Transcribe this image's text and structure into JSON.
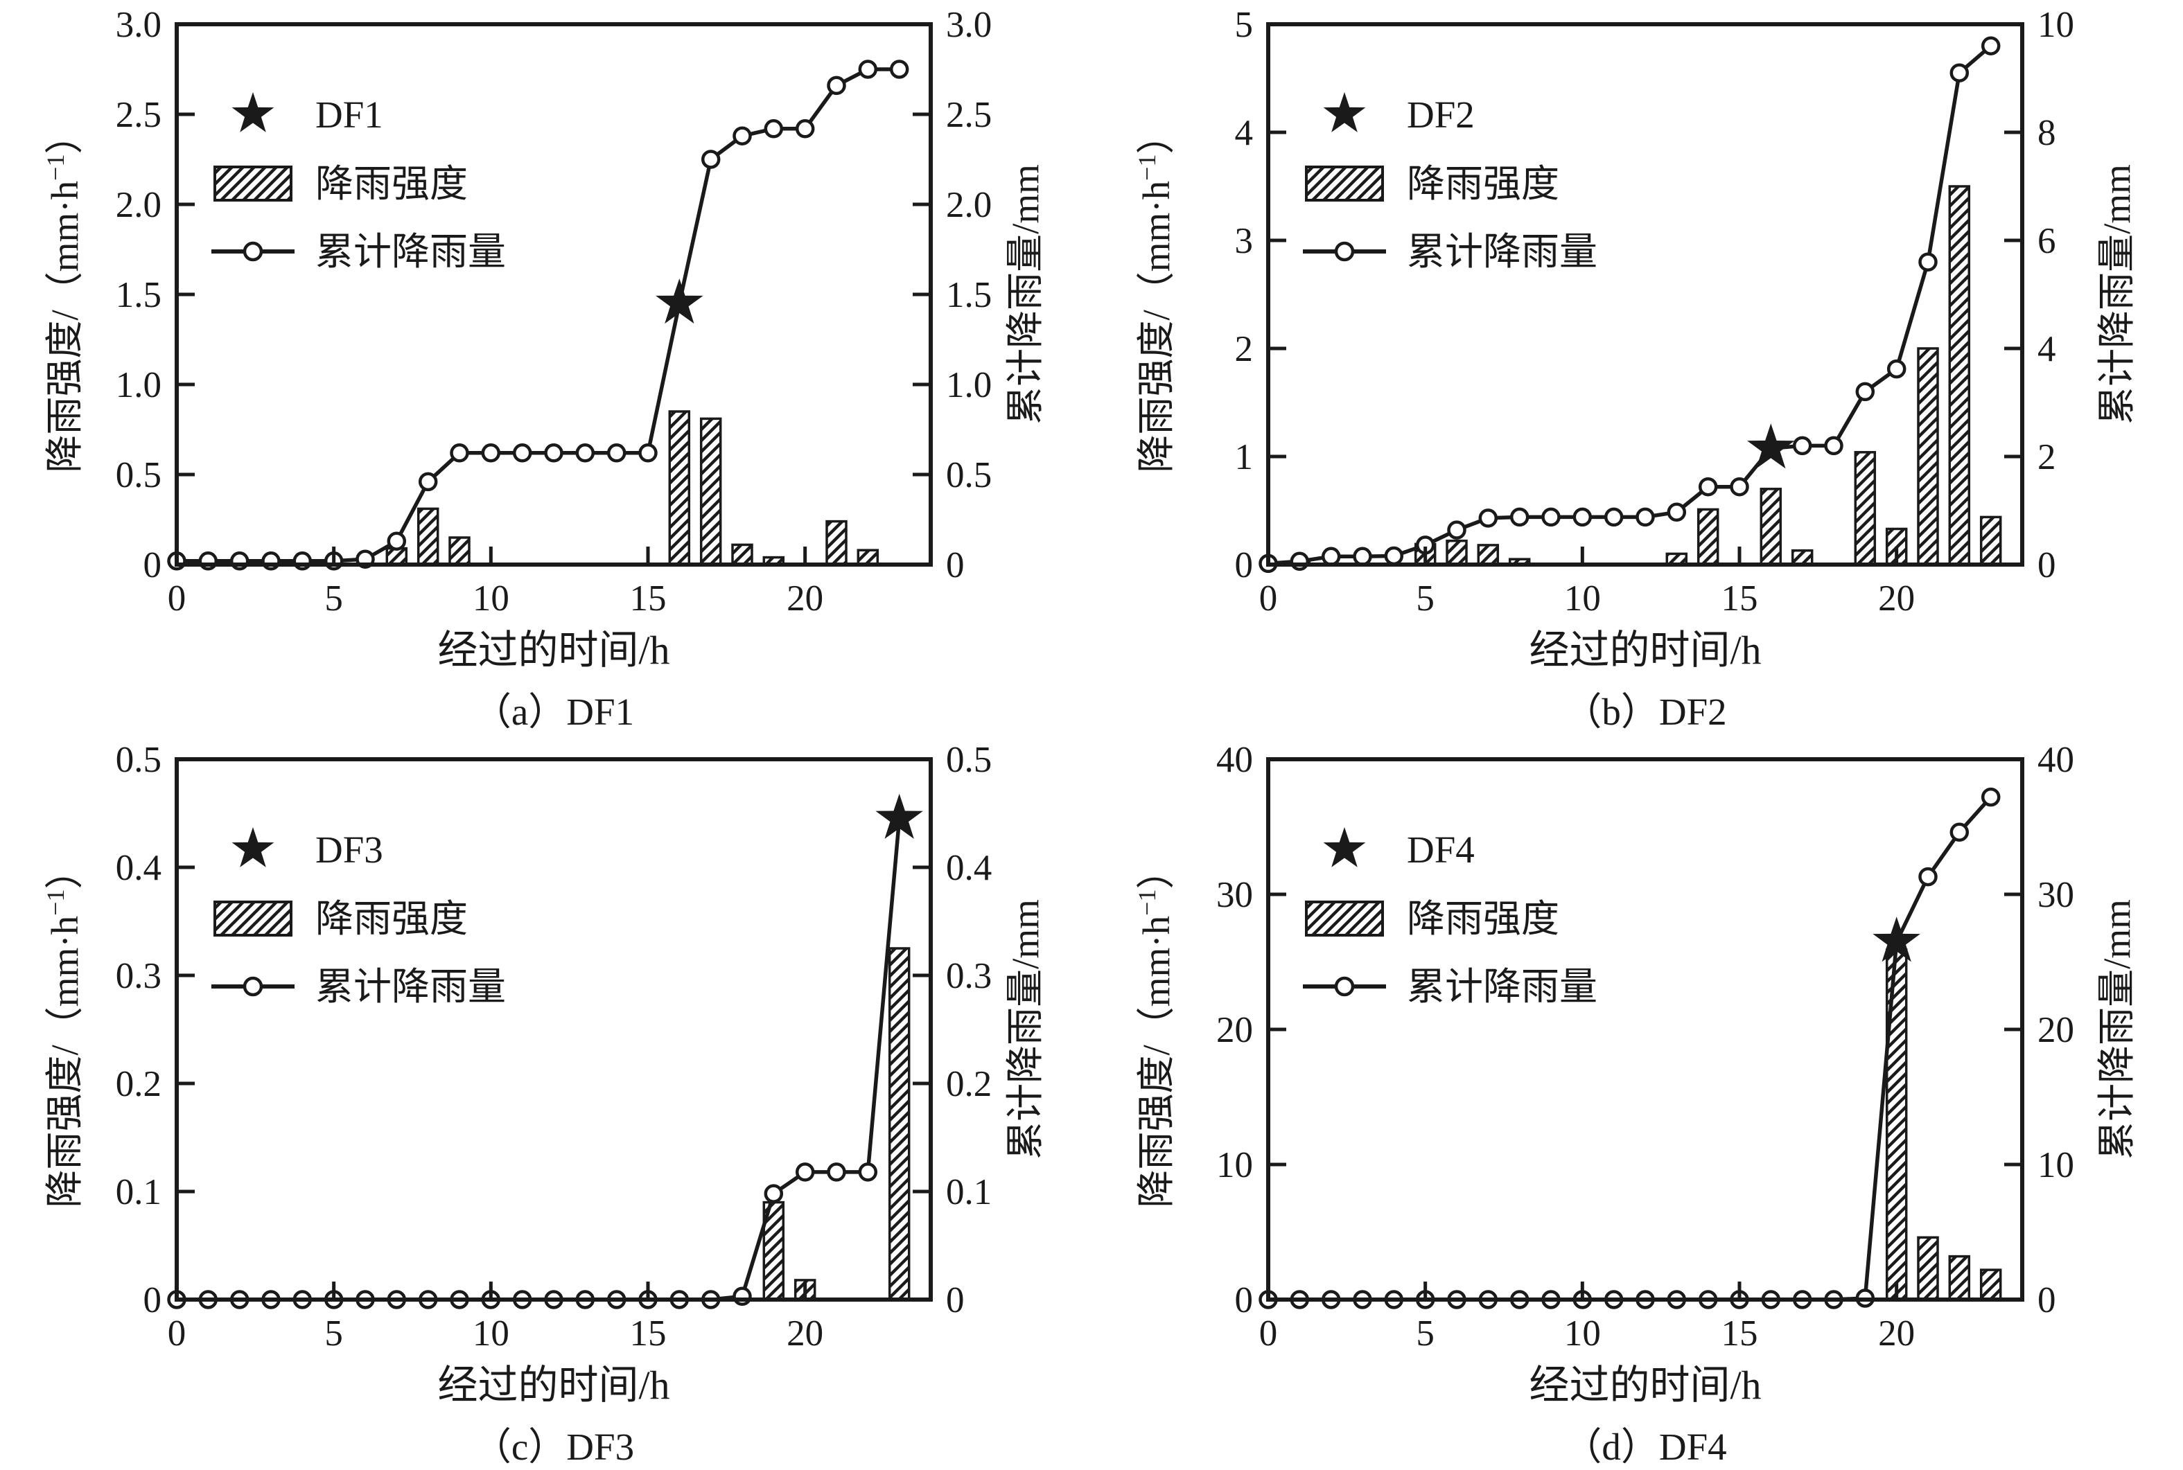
{
  "figure": {
    "background": "#ffffff",
    "ink": "#1a1a1a",
    "icons": [
      "star-icon",
      "hatched-bar-swatch-icon",
      "line-circle-swatch-icon"
    ]
  },
  "chart_data": [
    {
      "type": "bar+line",
      "panel": "a",
      "caption": "（a）DF1",
      "legend": {
        "series_label": "DF1",
        "bars_label": "降雨强度",
        "line_label": "累计降雨量"
      },
      "x_axis": {
        "label": "经过的时间/h",
        "min": 0,
        "max": 24,
        "ticks": [
          0,
          5,
          10,
          15,
          20
        ],
        "tick_labels": [
          "0",
          "5",
          "10",
          "15",
          "20"
        ]
      },
      "left_axis": {
        "label_base": "降雨强度/（mm·h",
        "label_sup": "−1",
        "label_close": "）",
        "min": 0,
        "max": 3,
        "ticks": [
          0,
          0.5,
          1,
          1.5,
          2,
          2.5,
          3
        ],
        "tick_labels": [
          "0",
          "0.5",
          "1.0",
          "1.5",
          "2.0",
          "2.5",
          "3.0"
        ]
      },
      "right_axis": {
        "label": "累计降雨量/mm",
        "min": 0,
        "max": 3,
        "ticks": [
          0,
          0.5,
          1,
          1.5,
          2,
          2.5,
          3
        ],
        "tick_labels": [
          "0",
          "0.5",
          "1.0",
          "1.5",
          "2.0",
          "2.5",
          "3.0"
        ]
      },
      "bars_mm_per_h": {
        "hours": [
          7,
          8,
          9,
          16,
          17,
          18,
          19,
          21,
          22
        ],
        "values": [
          0.09,
          0.31,
          0.15,
          0.85,
          0.81,
          0.11,
          0.04,
          0.24,
          0.08
        ]
      },
      "cumulative_mm": {
        "hours": [
          0,
          1,
          2,
          3,
          4,
          5,
          6,
          7,
          8,
          9,
          10,
          11,
          12,
          13,
          14,
          15,
          16,
          17,
          18,
          19,
          20,
          21,
          22,
          23
        ],
        "values": [
          0.02,
          0.02,
          0.02,
          0.02,
          0.02,
          0.02,
          0.03,
          0.13,
          0.46,
          0.62,
          0.62,
          0.62,
          0.62,
          0.62,
          0.62,
          0.62,
          1.45,
          2.25,
          2.38,
          2.42,
          2.42,
          2.66,
          2.75,
          2.75
        ]
      },
      "star": {
        "hour": 16,
        "cumulative_mm": 1.45
      }
    },
    {
      "type": "bar+line",
      "panel": "b",
      "caption": "（b）DF2",
      "legend": {
        "series_label": "DF2",
        "bars_label": "降雨强度",
        "line_label": "累计降雨量"
      },
      "x_axis": {
        "label": "经过的时间/h",
        "min": 0,
        "max": 24,
        "ticks": [
          0,
          5,
          10,
          15,
          20
        ],
        "tick_labels": [
          "0",
          "5",
          "10",
          "15",
          "20"
        ]
      },
      "left_axis": {
        "label_base": "降雨强度/（mm·h",
        "label_sup": "−1",
        "label_close": "）",
        "min": 0,
        "max": 5,
        "ticks": [
          0,
          1,
          2,
          3,
          4,
          5
        ],
        "tick_labels": [
          "0",
          "1",
          "2",
          "3",
          "4",
          "5"
        ]
      },
      "right_axis": {
        "label": "累计降雨量/mm",
        "min": 0,
        "max": 10,
        "ticks": [
          0,
          2,
          4,
          6,
          8,
          10
        ],
        "tick_labels": [
          "0",
          "2",
          "4",
          "6",
          "8",
          "10"
        ]
      },
      "bars_mm_per_h": {
        "hours": [
          1,
          5,
          6,
          7,
          8,
          13,
          14,
          16,
          17,
          19,
          20,
          21,
          22,
          23
        ],
        "values": [
          0.03,
          0.19,
          0.22,
          0.18,
          0.05,
          0.1,
          0.51,
          0.7,
          0.13,
          1.04,
          0.33,
          2.0,
          3.5,
          0.44
        ]
      },
      "cumulative_mm": {
        "hours": [
          0,
          1,
          2,
          3,
          4,
          5,
          6,
          7,
          8,
          9,
          10,
          11,
          12,
          13,
          14,
          15,
          16,
          17,
          18,
          19,
          20,
          21,
          22,
          23
        ],
        "values": [
          0.02,
          0.06,
          0.15,
          0.15,
          0.16,
          0.36,
          0.64,
          0.86,
          0.88,
          0.88,
          0.88,
          0.88,
          0.88,
          0.97,
          1.44,
          1.44,
          2.15,
          2.2,
          2.2,
          3.2,
          3.62,
          5.6,
          9.1,
          9.6
        ]
      },
      "star": {
        "hour": 16,
        "cumulative_mm": 2.15
      }
    },
    {
      "type": "bar+line",
      "panel": "c",
      "caption": "（c）DF3",
      "legend": {
        "series_label": "DF3",
        "bars_label": "降雨强度",
        "line_label": "累计降雨量"
      },
      "x_axis": {
        "label": "经过的时间/h",
        "min": 0,
        "max": 24,
        "ticks": [
          0,
          5,
          10,
          15,
          20
        ],
        "tick_labels": [
          "0",
          "5",
          "10",
          "15",
          "20"
        ]
      },
      "left_axis": {
        "label_base": "降雨强度/（mm·h",
        "label_sup": "−1",
        "label_close": "）",
        "min": 0,
        "max": 0.5,
        "ticks": [
          0,
          0.1,
          0.2,
          0.3,
          0.4,
          0.5
        ],
        "tick_labels": [
          "0",
          "0.1",
          "0.2",
          "0.3",
          "0.4",
          "0.5"
        ]
      },
      "right_axis": {
        "label": "累计降雨量/mm",
        "min": 0,
        "max": 0.5,
        "ticks": [
          0,
          0.1,
          0.2,
          0.3,
          0.4,
          0.5
        ],
        "tick_labels": [
          "0",
          "0.1",
          "0.2",
          "0.3",
          "0.4",
          "0.5"
        ]
      },
      "bars_mm_per_h": {
        "hours": [
          19,
          20,
          23
        ],
        "values": [
          0.09,
          0.018,
          0.325
        ]
      },
      "cumulative_mm": {
        "hours": [
          0,
          1,
          2,
          3,
          4,
          5,
          6,
          7,
          8,
          9,
          10,
          11,
          12,
          13,
          14,
          15,
          16,
          17,
          18,
          19,
          20,
          21,
          22,
          23
        ],
        "values": [
          0,
          0,
          0,
          0,
          0,
          0,
          0,
          0,
          0,
          0,
          0,
          0,
          0,
          0,
          0,
          0,
          0,
          0,
          0.003,
          0.098,
          0.118,
          0.118,
          0.118,
          0.445
        ]
      },
      "star": {
        "hour": 23,
        "cumulative_mm": 0.445
      }
    },
    {
      "type": "bar+line",
      "panel": "d",
      "caption": "（d）DF4",
      "legend": {
        "series_label": "DF4",
        "bars_label": "降雨强度",
        "line_label": "累计降雨量"
      },
      "x_axis": {
        "label": "经过的时间/h",
        "min": 0,
        "max": 24,
        "ticks": [
          0,
          5,
          10,
          15,
          20
        ],
        "tick_labels": [
          "0",
          "5",
          "10",
          "15",
          "20"
        ]
      },
      "left_axis": {
        "label_base": "降雨强度/（mm·h",
        "label_sup": "−1",
        "label_close": "）",
        "min": 0,
        "max": 40,
        "ticks": [
          0,
          10,
          20,
          30,
          40
        ],
        "tick_labels": [
          "0",
          "10",
          "20",
          "30",
          "40"
        ]
      },
      "right_axis": {
        "label": "累计降雨量/mm",
        "min": 0,
        "max": 40,
        "ticks": [
          0,
          10,
          20,
          30,
          40
        ],
        "tick_labels": [
          "0",
          "10",
          "20",
          "30",
          "40"
        ]
      },
      "bars_mm_per_h": {
        "hours": [
          20,
          21,
          22,
          23
        ],
        "values": [
          25.9,
          4.6,
          3.2,
          2.2
        ]
      },
      "cumulative_mm": {
        "hours": [
          0,
          1,
          2,
          3,
          4,
          5,
          6,
          7,
          8,
          9,
          10,
          11,
          12,
          13,
          14,
          15,
          16,
          17,
          18,
          19,
          20,
          21,
          22,
          23
        ],
        "values": [
          0,
          0,
          0,
          0,
          0,
          0,
          0,
          0,
          0,
          0,
          0,
          0,
          0,
          0,
          0,
          0,
          0,
          0,
          0,
          0.1,
          26.5,
          31.3,
          34.6,
          37.2
        ]
      },
      "star": {
        "hour": 20,
        "cumulative_mm": 26.5
      }
    }
  ]
}
